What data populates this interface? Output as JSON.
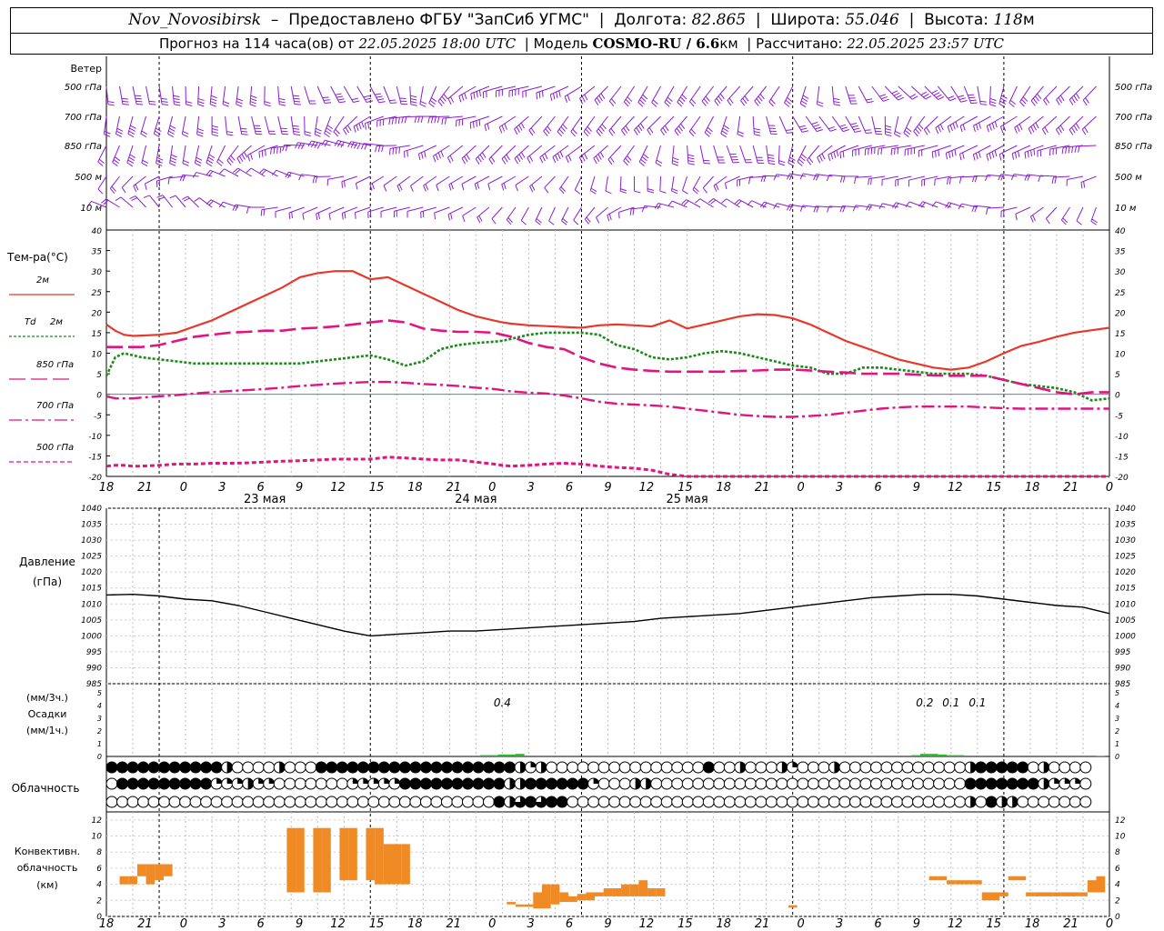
{
  "header": {
    "station": "Nov_Novosibirsk",
    "provided_by": "Предоставлено ФГБУ \"ЗапСиб УГМС\"",
    "lon_label": "Долгота:",
    "lon_value": "82.865",
    "lat_label": "Широта:",
    "lat_value": "55.046",
    "alt_label": "Высота:",
    "alt_value": "118",
    "alt_unit": "м",
    "forecast_prefix": "Прогноз на 114 часа(ов) от",
    "forecast_start": "22.05.2025 18:00 UTC",
    "model_label": "Модель",
    "model_name": "COSMO-RU / 6.6",
    "model_unit": "км",
    "calc_label": "Рассчитано:",
    "calc_time": "22.05.2025 23:57 UTC"
  },
  "time_axis": {
    "hours": [
      "18",
      "21",
      "0",
      "3",
      "6",
      "9",
      "12",
      "15",
      "18",
      "21",
      "0",
      "3",
      "6",
      "9",
      "12",
      "15",
      "18",
      "21",
      "0",
      "3",
      "6",
      "9",
      "12",
      "15",
      "18",
      "21",
      "0"
    ],
    "days": [
      "23 мая",
      "24 мая",
      "25 мая"
    ]
  },
  "wind": {
    "title": "Ветер",
    "levels": [
      "500 гПа",
      "700 гПа",
      "850 гПа",
      "500 м",
      "10  м"
    ],
    "color": "#8a1fd0"
  },
  "temp_panel": {
    "title": "Тем-ра(°C)",
    "legend": [
      {
        "name": "2м",
        "italic": "",
        "color": "#e8382b",
        "dash": "solid"
      },
      {
        "name": "2м",
        "italic": "Td",
        "color": "#1a8a1a",
        "dash": "dotted"
      },
      {
        "name": "850 гПа",
        "italic": "",
        "color": "#e0157f",
        "dash": "long"
      },
      {
        "name": "700 гПа",
        "italic": "",
        "color": "#e0157f",
        "dash": "dashdot"
      },
      {
        "name": "500 гПа",
        "italic": "",
        "color": "#e0157f",
        "dash": "short"
      }
    ],
    "yticks": [
      "40",
      "35",
      "30",
      "25",
      "20",
      "15",
      "10",
      "5",
      "0",
      "-5",
      "-10",
      "-15",
      "-20"
    ]
  },
  "pressure_panel": {
    "title_line1": "Давление",
    "title_line2": "(гПа)",
    "yticks": [
      "1040",
      "1035",
      "1030",
      "1025",
      "1020",
      "1015",
      "1010",
      "1005",
      "1000",
      "995",
      "990",
      "985"
    ]
  },
  "precip_panel": {
    "label_3h": "(мм/3ч.)",
    "label_title": "Осадки",
    "label_1h": "(мм/1ч.)",
    "yticks": [
      "5",
      "4",
      "3",
      "2",
      "1",
      "0"
    ],
    "annotations": [
      {
        "hour": 45,
        "text": "0.4"
      },
      {
        "hour": 93,
        "text": "0.2"
      },
      {
        "hour": 96,
        "text": "0.1"
      },
      {
        "hour": 99,
        "text": "0.1"
      }
    ]
  },
  "cloud_panel": {
    "title": "Облачность",
    "rows": [
      "4444444444420000200044444444444444444442120000000000000004002000210002000000000000244444020000",
      "0444444444111211000000011111444444444422444444100022000000000000000000000000000000444444421110",
      "0000000000000000000000000000000000000423434400000000000000000000000000000000000000204220000000"
    ]
  },
  "conv_panel": {
    "title_line1": "Конвективн.",
    "title_line2": "облачность",
    "title_line3": "(км)",
    "yticks": [
      "12",
      "10",
      "8",
      "6",
      "4",
      "2",
      "0"
    ]
  },
  "chart_data": [
    {
      "type": "line",
      "title": "Тем-ра(°C)",
      "x_hours_from_start": [
        0,
        1,
        2,
        3,
        4,
        6,
        8,
        10,
        12,
        14,
        16,
        18,
        20,
        22,
        24,
        26,
        28,
        30,
        32,
        34,
        36,
        38,
        40,
        42,
        44,
        45,
        46,
        48,
        50,
        52,
        54,
        56,
        58,
        60,
        62,
        64,
        66,
        68,
        70,
        72,
        74,
        76,
        78,
        80,
        82,
        84,
        86,
        88,
        90,
        92,
        94,
        96,
        98,
        100,
        102,
        104,
        106,
        108,
        110,
        112,
        114
      ],
      "ylim": [
        -20,
        40
      ],
      "series": [
        {
          "name": "2м",
          "values": [
            17,
            15.5,
            14.5,
            14.2,
            14.3,
            14.5,
            15,
            16.5,
            18,
            20,
            22,
            24,
            26,
            28.5,
            29.5,
            30,
            30,
            28,
            28.5,
            26.5,
            24.5,
            22.5,
            20.5,
            19,
            18,
            17.5,
            17.2,
            16.8,
            16.6,
            16.4,
            16.2,
            16.8,
            17,
            16.8,
            16.5,
            18,
            16,
            17,
            18,
            19,
            19.5,
            19.3,
            18.5,
            17,
            15,
            13,
            11.5,
            10,
            8.5,
            7.5,
            6.5,
            6,
            6.5,
            8,
            10,
            11.8,
            12.8,
            14,
            15,
            15.6,
            16.2
          ]
        },
        {
          "name": "Td 2м",
          "values": [
            4.5,
            9,
            10,
            9.5,
            9,
            8.5,
            8,
            7.5,
            7.5,
            7.5,
            7.5,
            7.5,
            7.5,
            7.5,
            8,
            8.5,
            9,
            9.5,
            8.5,
            7,
            8,
            11,
            12,
            12.5,
            12.8,
            13,
            13.5,
            14.5,
            15,
            15,
            15,
            14.5,
            12,
            11,
            9,
            8.5,
            9,
            10,
            10.5,
            10,
            9,
            8,
            7,
            6.5,
            5,
            5,
            6.5,
            6.5,
            6,
            5.5,
            5,
            5,
            5,
            4.5,
            3.5,
            2.5,
            2,
            1.5,
            0.5,
            -1.5,
            -1
          ]
        },
        {
          "name": "850 гПа",
          "values": [
            11.5,
            11.5,
            11.5,
            11.5,
            11.5,
            12,
            13,
            14,
            14.5,
            15,
            15.2,
            15.5,
            15.5,
            16,
            16.2,
            16.5,
            17,
            17.5,
            18,
            17.5,
            16,
            15.5,
            15.2,
            15.2,
            15,
            14.5,
            14,
            12.5,
            11.5,
            11,
            9,
            7.5,
            6.5,
            6,
            5.7,
            5.5,
            5.5,
            5.5,
            5.5,
            5.7,
            5.8,
            6,
            6,
            5.8,
            5.5,
            5.3,
            5,
            5,
            5,
            4.8,
            4.6,
            4.5,
            4.5,
            4.5,
            3.5,
            2.5,
            1.5,
            0.5,
            0,
            0.5,
            0.5
          ]
        },
        {
          "name": "700 гПа",
          "values": [
            -0.5,
            -1,
            -1,
            -1,
            -0.8,
            -0.5,
            -0.2,
            0.2,
            0.5,
            0.8,
            1,
            1.3,
            1.6,
            2,
            2.3,
            2.6,
            2.8,
            3,
            3,
            2.8,
            2.5,
            2.3,
            2,
            1.6,
            1.3,
            1,
            0.7,
            0.4,
            0.2,
            -0.3,
            -1,
            -1.8,
            -2.3,
            -2.5,
            -2.7,
            -3,
            -3.5,
            -4,
            -4.5,
            -5,
            -5.3,
            -5.5,
            -5.5,
            -5.3,
            -5,
            -4.5,
            -4,
            -3.5,
            -3.2,
            -3,
            -3,
            -3,
            -3,
            -3.2,
            -3.4,
            -3.5,
            -3.5,
            -3.5,
            -3.5,
            -3.5,
            -3.5
          ]
        },
        {
          "name": "500 гПа",
          "values": [
            -17.5,
            -17.3,
            -17.3,
            -17.5,
            -17.5,
            -17.3,
            -17,
            -17,
            -16.8,
            -16.8,
            -16.7,
            -16.5,
            -16.3,
            -16.2,
            -16,
            -15.8,
            -15.8,
            -15.8,
            -15.3,
            -15.5,
            -15.8,
            -16,
            -16,
            -16.5,
            -17,
            -17.3,
            -17.5,
            -17.3,
            -17,
            -16.8,
            -17,
            -17.5,
            -17.8,
            -18,
            -18.5,
            -19.5,
            -20.5,
            -21.5,
            -22,
            -21,
            -20,
            -20,
            -20.5,
            -21,
            -21.5,
            -22,
            -22.5,
            -22.5,
            -22,
            -21.5,
            -21,
            -21,
            -21,
            -21,
            -21,
            -21,
            -21,
            -21,
            -21,
            -21,
            -21
          ]
        }
      ]
    },
    {
      "type": "line",
      "title": "Давление",
      "x_hours_from_start": [
        0,
        3,
        6,
        9,
        12,
        15,
        18,
        21,
        24,
        27,
        30,
        33,
        36,
        39,
        42,
        45,
        48,
        51,
        54,
        57,
        60,
        63,
        66,
        69,
        72,
        75,
        78,
        81,
        84,
        87,
        90,
        93,
        96,
        99,
        102,
        105,
        108,
        111,
        114
      ],
      "ylim": [
        985,
        1040
      ],
      "series": [
        {
          "name": "Давление",
          "values": [
            1012.8,
            1013,
            1012.5,
            1011.5,
            1011,
            1009.5,
            1007.5,
            1005.5,
            1003.5,
            1001.5,
            1000,
            1000.5,
            1001,
            1001.5,
            1001.5,
            1002,
            1002.5,
            1003,
            1003.5,
            1004,
            1004.5,
            1005.5,
            1006,
            1006.5,
            1007,
            1008,
            1009,
            1010,
            1011,
            1012,
            1012.5,
            1013,
            1013,
            1012.5,
            1011.5,
            1010.5,
            1009.5,
            1009,
            1007
          ]
        }
      ]
    },
    {
      "type": "bar",
      "title": "Осадки",
      "x_hours_from_start": [
        43,
        44,
        45,
        46,
        47,
        92,
        93,
        94,
        95,
        96,
        97,
        113
      ],
      "ylim": [
        0,
        5
      ],
      "series": [
        {
          "name": "мм/1ч.",
          "values": [
            0.1,
            0.1,
            0.15,
            0.15,
            0.2,
            0.1,
            0.2,
            0.2,
            0.15,
            0.1,
            0.1,
            0.05
          ]
        }
      ]
    },
    {
      "type": "bar",
      "title": "Конвективн. облачность (км)",
      "x_hours_from_start": [
        2,
        3,
        4,
        5,
        6,
        7,
        21,
        22,
        24,
        25,
        27,
        28,
        30,
        31,
        32,
        33,
        34,
        46,
        47,
        48,
        49,
        50,
        51,
        52,
        53,
        54,
        55,
        56,
        57,
        58,
        59,
        60,
        61,
        62,
        63,
        78,
        94,
        95,
        96,
        97,
        98,
        99,
        100,
        101,
        102,
        103,
        104,
        105,
        106,
        107,
        108,
        109,
        110,
        111,
        112,
        113
      ],
      "ylim": [
        0,
        13
      ],
      "series": [
        {
          "name": "base",
          "values": [
            4,
            4,
            5,
            4,
            4.5,
            5,
            3,
            3,
            3,
            3,
            4.5,
            4.5,
            4.5,
            4,
            4,
            4,
            4,
            1.5,
            1.2,
            1.2,
            1,
            1,
            1.5,
            1.8,
            1.8,
            2,
            2,
            2.5,
            2.5,
            2.5,
            2.5,
            2.5,
            2.5,
            2.5,
            2.5,
            1.1,
            4.5,
            4.5,
            4,
            4,
            4,
            4,
            2,
            2,
            2.5,
            4.5,
            4.5,
            2.5,
            2.5,
            2.5,
            2.5,
            2.5,
            2.5,
            2.5,
            3,
            3
          ]
        },
        {
          "name": "top",
          "values": [
            5,
            5,
            6.5,
            6.5,
            6.5,
            6.5,
            11,
            11,
            11,
            11,
            11,
            11,
            11,
            11,
            9,
            9,
            9,
            1.8,
            1.5,
            1.5,
            3,
            4,
            4,
            3,
            2.5,
            2.8,
            3,
            3,
            3.5,
            3.5,
            4,
            4,
            4.5,
            3.5,
            3.5,
            1.4,
            5,
            5,
            4.5,
            4.5,
            4.5,
            4.5,
            3,
            3,
            3,
            5,
            5,
            3,
            3,
            3,
            3,
            3,
            3,
            3,
            4.5,
            5
          ]
        }
      ]
    }
  ]
}
